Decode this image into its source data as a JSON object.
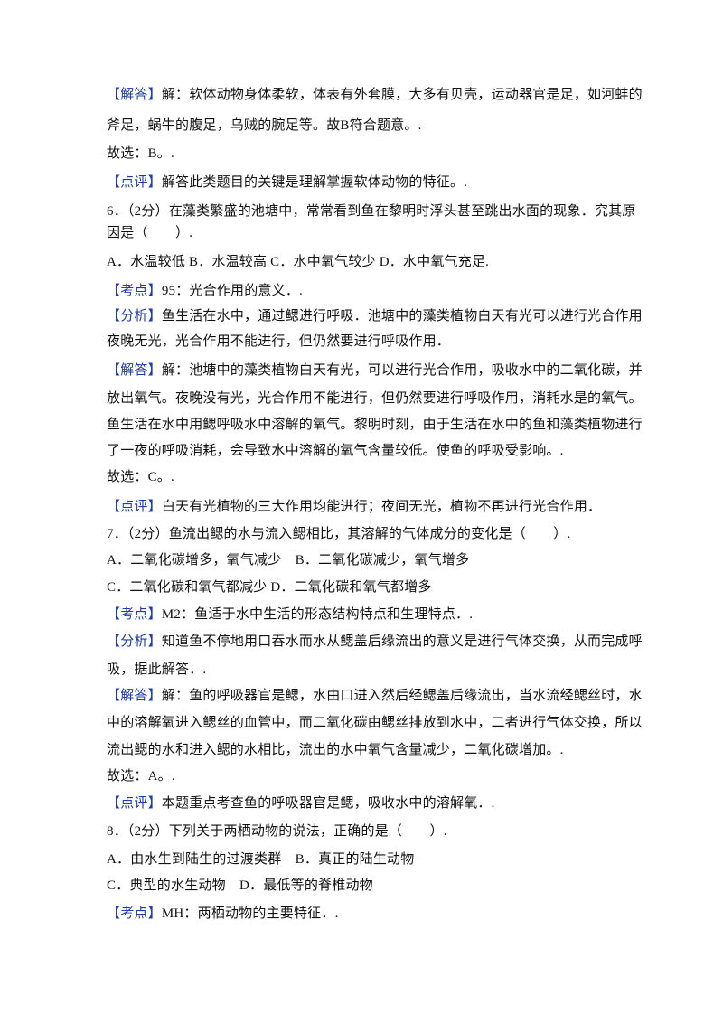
{
  "lines": [
    {
      "tag": "【解答】",
      "text": "解：软体动物身体柔软，体表有外套膜，大多有贝壳，运动器官是足，如河蚌的"
    },
    {
      "text": "斧足，蜗牛的腹足，乌贼的腕足等。故B符合题意。."
    },
    {
      "text": "故选：B。."
    },
    {
      "tag": "【点评】",
      "text": "解答此类题目的关键是理解掌握软体动物的特征。."
    },
    {
      "text": "6．（2分）在藻类繁盛的池塘中，常常看到鱼在黎明时浮头甚至跳出水面的现象．究其原"
    },
    {
      "text": "因是（　　）."
    },
    {
      "text": "A．水温较低 B．水温较高 C．水中氧气较少 D．水中氧气充足."
    },
    {
      "tag": "【考点】",
      "text": "95：光合作用的意义．."
    },
    {
      "tag": "【分析】",
      "text": "鱼生活在水中，通过鳃进行呼吸．池塘中的藻类植物白天有光可以进行光合作用"
    },
    {
      "text": "夜晚无光，光合作用不能进行，但仍然要进行呼吸作用．"
    },
    {
      "tag": "【解答】",
      "text": "解：池塘中的藻类植物白天有光，可以进行光合作用，吸收水中的二氧化碳，并"
    },
    {
      "text": "放出氧气。夜晚没有光，光合作用不能进行，但仍然要进行呼吸作用，消耗水是的氧气。"
    },
    {
      "text": "鱼生活在水中用鳃呼吸水中溶解的氧气。黎明时刻，由于生活在水中的鱼和藻类植物进行"
    },
    {
      "text": "了一夜的呼吸消耗，会导致水中溶解的氧气含量较低。使鱼的呼吸受影响。."
    },
    {
      "text": "故选：C。."
    },
    {
      "tag": "【点评】",
      "text": "白天有光植物的三大作用均能进行；夜间无光，植物不再进行光合作用．"
    },
    {
      "text": "7．（2分）鱼流出鳃的水与流入鳃相比，其溶解的气体成分的变化是（　　）."
    },
    {
      "text": "A．二氧化碳增多，氧气减少　B．二氧化碳减少，氧气增多"
    },
    {
      "text": "C．二氧化碳和氧气都减少 D．二氧化碳和氧气都增多"
    },
    {
      "tag": "【考点】",
      "text": "M2：鱼适于水中生活的形态结构特点和生理特点．."
    },
    {
      "tag": "【分析】",
      "text": "知道鱼不停地用口吞水而水从鳃盖后缘流出的意义是进行气体交换，从而完成呼"
    },
    {
      "text": "吸，据此解答．."
    },
    {
      "tag": "【解答】",
      "text": "解：鱼的呼吸器官是鳃，水由口进入然后经鳃盖后缘流出，当水流经鳃丝时，水"
    },
    {
      "text": "中的溶解氧进入鳃丝的血管中，而二氧化碳由鳃丝排放到水中，二者进行气体交换，所以"
    },
    {
      "text": "流出鳃的水和进入鳃的水相比，流出的水中氧气含量减少，二氧化碳增加。."
    },
    {
      "text": "故选：A。."
    },
    {
      "tag": "【点评】",
      "text": "本题重点考查鱼的呼吸器官是鳃，吸收水中的溶解氧．."
    },
    {
      "text": "8．（2分）下列关于两栖动物的说法，正确的是（　　）."
    },
    {
      "text": "A．由水生到陆生的过渡类群　B．真正的陆生动物"
    },
    {
      "text": "C．典型的水生动物　D．最低等的脊椎动物"
    },
    {
      "tag": "【考点】",
      "text": "MH：两栖动物的主要特征．."
    }
  ]
}
